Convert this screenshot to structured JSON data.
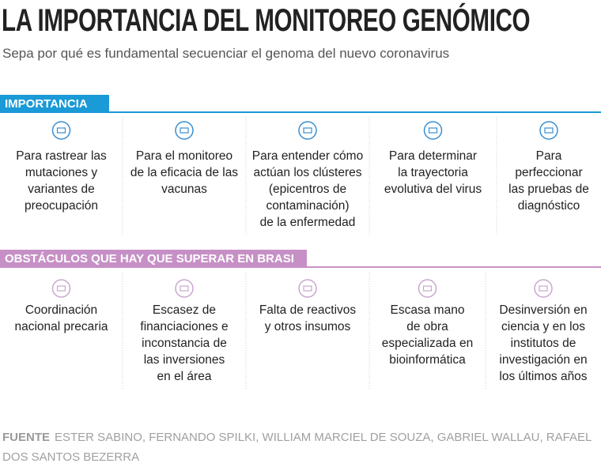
{
  "header": {
    "title": "LA IMPORTANCIA DEL MONITOREO GENÓMICO",
    "subtitle": "Sepa por qué es fundamental secuenciar el genoma del nuevo coronavirus"
  },
  "sections": [
    {
      "heading": "IMPORTANCIA",
      "items": [
        {
          "lines": [
            "Para rastrear las",
            "mutaciones y",
            "variantes de",
            "preocupación"
          ]
        },
        {
          "lines": [
            "Para el monitoreo",
            "de la eficacia de las",
            "vacunas"
          ]
        },
        {
          "lines": [
            "Para entender cómo",
            "actúan los clústeres",
            "(epicentros de",
            "contaminación)",
            "de la enfermedad"
          ]
        },
        {
          "lines": [
            "Para determinar",
            "la trayectoria",
            "evolutiva del virus"
          ]
        },
        {
          "lines": [
            "Para",
            "perfeccionar",
            "las pruebas de",
            "diagnóstico"
          ]
        }
      ]
    },
    {
      "heading": "OBSTÁCULOS QUE HAY QUE SUPERAR EN BRASI",
      "items": [
        {
          "lines": [
            "Coordinación",
            "nacional precaria"
          ]
        },
        {
          "lines": [
            "Escasez de",
            "financiaciones e",
            "inconstancia de",
            "las inversiones",
            "en el área"
          ]
        },
        {
          "lines": [
            "Falta de reactivos",
            "y otros insumos"
          ]
        },
        {
          "lines": [
            "Escasa mano",
            "de obra",
            "especializada en",
            "bioinformática"
          ]
        },
        {
          "lines": [
            "Desinversión en",
            "ciencia y en los",
            "institutos de",
            "investigación en",
            "los últimos años"
          ]
        }
      ]
    }
  ],
  "source": {
    "label": "FUENTE",
    "text": "ESTER SABINO, FERNANDO SPILKI, WILLIAM MARCIEL DE SOUZA, GABRIEL WALLAU, RAFAEL DOS SANTOS BEZERRA"
  }
}
